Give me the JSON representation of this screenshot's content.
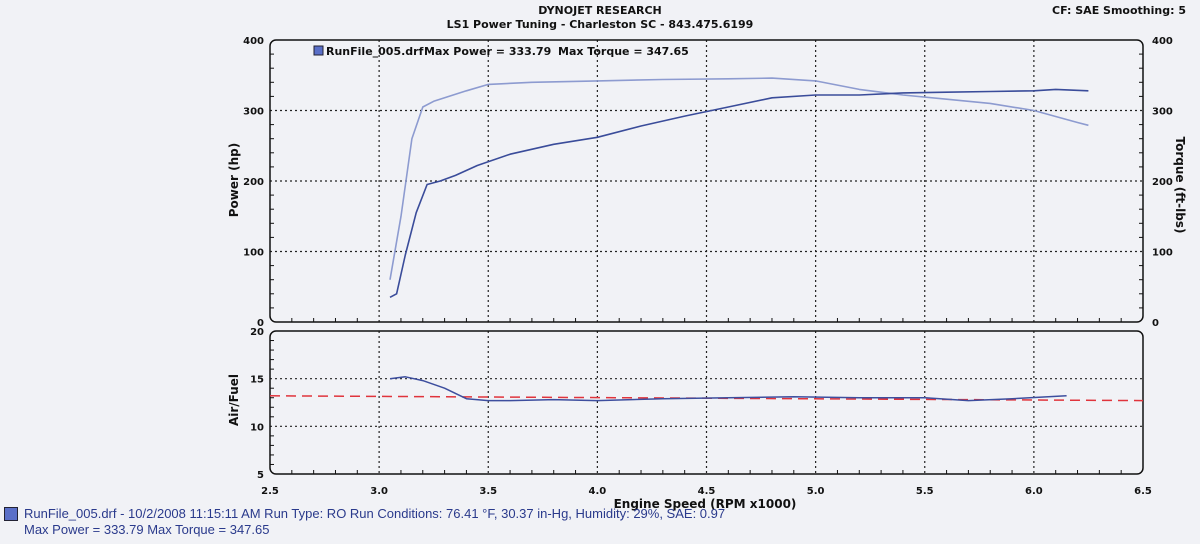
{
  "header": {
    "line1": "DYNOJET RESEARCH",
    "line2": "LS1 Power Tuning - Charleston SC - 843.475.6199",
    "right": "CF: SAE  Smoothing: 5"
  },
  "footer": {
    "line1": "RunFile_005.drf - 10/2/2008 11:15:11 AM  Run Type: RO  Run Conditions: 76.41 °F, 30.37 in-Hg,  Humidity:  29%, SAE: 0.97",
    "line2": "Max Power = 333.79  Max Torque = 347.65"
  },
  "colors": {
    "power": "#3a4c9a",
    "torque": "#8d9bd0",
    "afr": "#3d4e9e",
    "target": "#e0343c",
    "grid": "#222222"
  },
  "chart_data": [
    {
      "type": "line",
      "legend": {
        "file": "RunFile_005.drf",
        "power_label": "Max Power = 333.79",
        "torque_label": "Max Torque = 347.65"
      },
      "xlabel": "Engine Speed (RPM x1000)",
      "ylabel_left": "Power (hp)",
      "ylabel_right": "Torque (ft-lbs)",
      "xlim": [
        2.5,
        6.5
      ],
      "ylim": [
        0,
        400
      ],
      "x_ticks": [
        "2.5",
        "3.0",
        "3.5",
        "4.0",
        "4.5",
        "5.0",
        "5.5",
        "6.0",
        "6.5"
      ],
      "y_ticks_left": [
        "0",
        "100",
        "200",
        "300",
        "400"
      ],
      "y_ticks_right": [
        "0",
        "100",
        "200",
        "300",
        "400"
      ],
      "grid": true,
      "series": [
        {
          "name": "Power",
          "x": [
            3.05,
            3.08,
            3.12,
            3.17,
            3.22,
            3.28,
            3.35,
            3.45,
            3.6,
            3.8,
            4.0,
            4.2,
            4.4,
            4.6,
            4.8,
            5.0,
            5.2,
            5.4,
            5.6,
            5.8,
            6.0,
            6.1,
            6.25
          ],
          "y": [
            35,
            40,
            95,
            155,
            195,
            200,
            208,
            222,
            238,
            252,
            262,
            278,
            292,
            305,
            318,
            322,
            322,
            325,
            326,
            327,
            328,
            330,
            328
          ]
        },
        {
          "name": "Torque",
          "x": [
            3.05,
            3.1,
            3.15,
            3.2,
            3.25,
            3.3,
            3.4,
            3.5,
            3.7,
            4.0,
            4.3,
            4.6,
            4.8,
            5.0,
            5.2,
            5.4,
            5.6,
            5.8,
            6.0,
            6.2,
            6.25
          ],
          "y": [
            60,
            150,
            260,
            305,
            313,
            318,
            328,
            337,
            340,
            342,
            344,
            345,
            346,
            342,
            330,
            322,
            316,
            310,
            300,
            283,
            279
          ]
        }
      ]
    },
    {
      "type": "line",
      "ylabel": "Air/Fuel",
      "xlim": [
        2.5,
        6.5
      ],
      "ylim": [
        5,
        20
      ],
      "y_ticks": [
        "5",
        "10",
        "15",
        "20"
      ],
      "grid": true,
      "series": [
        {
          "name": "Air/Fuel",
          "x": [
            3.05,
            3.12,
            3.2,
            3.3,
            3.4,
            3.5,
            3.6,
            3.8,
            4.0,
            4.3,
            4.6,
            4.9,
            5.2,
            5.5,
            5.7,
            5.9,
            6.15
          ],
          "y": [
            15.0,
            15.2,
            14.8,
            14.0,
            12.9,
            12.7,
            12.7,
            12.8,
            12.7,
            12.9,
            13.0,
            13.1,
            13.0,
            13.0,
            12.7,
            12.9,
            13.2
          ]
        },
        {
          "name": "Target",
          "x": [
            2.5,
            6.5
          ],
          "y": [
            13.2,
            12.7
          ]
        }
      ]
    }
  ]
}
